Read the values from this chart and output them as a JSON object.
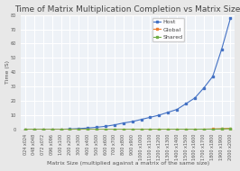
{
  "title": "Time of Matrix Multiplication Completion vs Matrix Size",
  "xlabel": "Matrix Size (multiplied against a matrix of the same size)",
  "ylabel": "Time (S)",
  "fig_bg_color": "#e8e8e8",
  "plot_bg_color": "#eef2f7",
  "grid_color": "#ffffff",
  "ylim": [
    0,
    80
  ],
  "yticks": [
    0,
    10,
    20,
    30,
    40,
    50,
    60,
    70,
    80
  ],
  "x_labels": [
    "024 x024",
    "048 x048",
    "072 x072",
    "096 x096",
    "100 x100",
    "200 x200",
    "300 x300",
    "400 x400",
    "500 x500",
    "600 x600",
    "700 x700",
    "800 x800",
    "900 x900",
    "1000 x1000",
    "1100 x1100",
    "1200 x1200",
    "1300 x1300",
    "1400 x1400",
    "1500 x1500",
    "1600 x1600",
    "1700 x1700",
    "1800 x1800",
    "1900 x1900",
    "2000 x2000"
  ],
  "host_values": [
    0.01,
    0.02,
    0.04,
    0.08,
    0.1,
    0.3,
    0.6,
    1.0,
    1.5,
    2.2,
    3.2,
    4.5,
    5.5,
    7.0,
    8.5,
    10.0,
    12.0,
    14.0,
    18.0,
    22.0,
    29.0,
    37.0,
    56.0,
    78.0
  ],
  "global_values": [
    0.005,
    0.005,
    0.005,
    0.005,
    0.005,
    0.005,
    0.005,
    0.005,
    0.005,
    0.01,
    0.01,
    0.02,
    0.02,
    0.03,
    0.04,
    0.05,
    0.06,
    0.08,
    0.1,
    0.12,
    0.2,
    0.3,
    0.5,
    0.8
  ],
  "shared_values": [
    0.005,
    0.005,
    0.005,
    0.005,
    0.005,
    0.005,
    0.01,
    0.01,
    0.01,
    0.01,
    0.02,
    0.02,
    0.03,
    0.03,
    0.04,
    0.05,
    0.06,
    0.07,
    0.08,
    0.1,
    0.15,
    0.2,
    0.3,
    0.5
  ],
  "host_color": "#4472c4",
  "global_color": "#ed7d31",
  "shared_color": "#70ad47",
  "marker": "s",
  "linewidth": 0.8,
  "markersize": 2.0,
  "title_fontsize": 6.5,
  "label_fontsize": 4.5,
  "tick_fontsize": 3.5,
  "legend_fontsize": 4.5,
  "legend_labels": [
    "Host",
    "Global",
    "Shared"
  ]
}
